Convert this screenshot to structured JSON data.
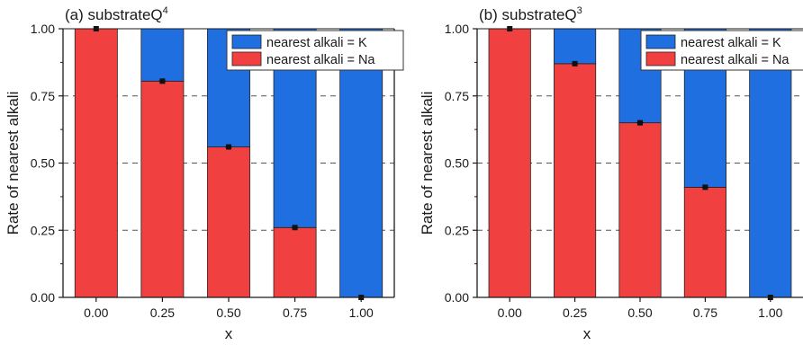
{
  "colors": {
    "na": "#f04040",
    "k": "#1f6fe0",
    "axis": "#1a1a1a",
    "grid": "#555555"
  },
  "chart_data": [
    {
      "type": "bar",
      "stacked": true,
      "title_prefix": "(a) substrateQ",
      "title_sup": "4",
      "xlabel": "x",
      "ylabel": "Rate of nearest alkali",
      "categories": [
        "0.00",
        "0.25",
        "0.50",
        "0.75",
        "1.00"
      ],
      "ylim": [
        0,
        1
      ],
      "yticks": [
        "0.00",
        "0.25",
        "0.50",
        "0.75",
        "1.00"
      ],
      "grid": "horizontal dashed at 0.25, 0.50, 0.75",
      "legend_position": "top-right",
      "series": [
        {
          "name": "nearest alkali = K",
          "color": "#1f6fe0",
          "values": [
            0.0,
            0.195,
            0.44,
            0.74,
            1.0
          ]
        },
        {
          "name": "nearest alkali = Na",
          "color": "#f04040",
          "values": [
            1.0,
            0.805,
            0.56,
            0.26,
            0.0
          ]
        }
      ]
    },
    {
      "type": "bar",
      "stacked": true,
      "title_prefix": "(b) substrateQ",
      "title_sup": "3",
      "xlabel": "x",
      "ylabel": "Rate of nearest alkali",
      "categories": [
        "0.00",
        "0.25",
        "0.50",
        "0.75",
        "1.00"
      ],
      "ylim": [
        0,
        1
      ],
      "yticks": [
        "0.00",
        "0.25",
        "0.50",
        "0.75",
        "1.00"
      ],
      "grid": "horizontal dashed at 0.25, 0.50, 0.75",
      "legend_position": "top-right",
      "series": [
        {
          "name": "nearest alkali = K",
          "color": "#1f6fe0",
          "values": [
            0.0,
            0.13,
            0.35,
            0.59,
            1.0
          ]
        },
        {
          "name": "nearest alkali = Na",
          "color": "#f04040",
          "values": [
            1.0,
            0.87,
            0.65,
            0.41,
            0.0
          ]
        }
      ]
    }
  ]
}
